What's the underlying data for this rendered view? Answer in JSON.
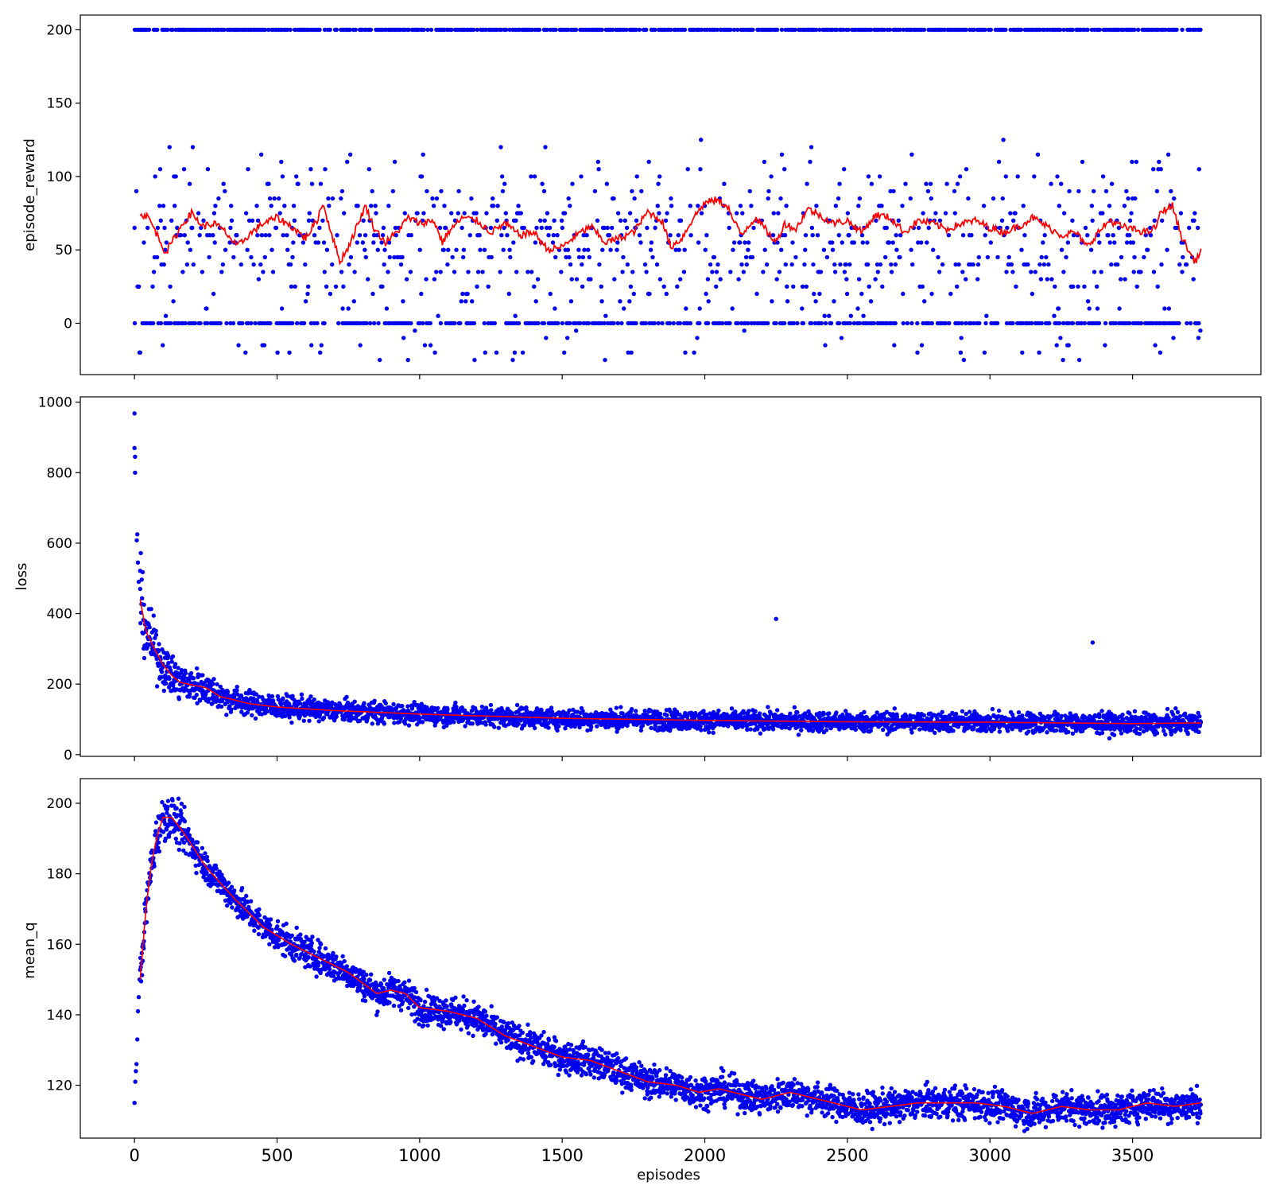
{
  "colors": {
    "scatter": "#0000ee",
    "moving_average": "#ff0000"
  },
  "chart_data": [
    {
      "type": "scatter",
      "ylabel": "episode_reward",
      "xlabel": "",
      "xlim": [
        -190,
        3950
      ],
      "ylim": [
        -35,
        210
      ],
      "x_ticks": [
        0,
        500,
        1000,
        1500,
        2000,
        2500,
        3000,
        3500
      ],
      "y_ticks": [
        0,
        50,
        100,
        150,
        200
      ],
      "x_tick_labels_visible": false,
      "points": {
        "episodes": [
          0,
          3740
        ],
        "levels": [
          200,
          0
        ],
        "range": [
          -25,
          125
        ],
        "step": 5
      },
      "moving_average_knots": [
        [
          20,
          75
        ],
        [
          50,
          72
        ],
        [
          80,
          60
        ],
        [
          110,
          48
        ],
        [
          140,
          58
        ],
        [
          170,
          68
        ],
        [
          200,
          75
        ],
        [
          240,
          66
        ],
        [
          280,
          68
        ],
        [
          320,
          62
        ],
        [
          360,
          52
        ],
        [
          400,
          60
        ],
        [
          450,
          68
        ],
        [
          500,
          72
        ],
        [
          550,
          66
        ],
        [
          600,
          58
        ],
        [
          640,
          70
        ],
        [
          660,
          82
        ],
        [
          690,
          62
        ],
        [
          720,
          42
        ],
        [
          750,
          52
        ],
        [
          780,
          66
        ],
        [
          810,
          80
        ],
        [
          840,
          65
        ],
        [
          880,
          55
        ],
        [
          920,
          62
        ],
        [
          960,
          72
        ],
        [
          1000,
          68
        ],
        [
          1050,
          70
        ],
        [
          1080,
          55
        ],
        [
          1100,
          62
        ],
        [
          1150,
          72
        ],
        [
          1200,
          70
        ],
        [
          1250,
          62
        ],
        [
          1300,
          68
        ],
        [
          1350,
          60
        ],
        [
          1400,
          62
        ],
        [
          1450,
          50
        ],
        [
          1500,
          52
        ],
        [
          1550,
          60
        ],
        [
          1600,
          66
        ],
        [
          1650,
          55
        ],
        [
          1700,
          58
        ],
        [
          1750,
          62
        ],
        [
          1800,
          76
        ],
        [
          1850,
          70
        ],
        [
          1880,
          52
        ],
        [
          1920,
          58
        ],
        [
          1960,
          72
        ],
        [
          2000,
          82
        ],
        [
          2040,
          84
        ],
        [
          2080,
          80
        ],
        [
          2100,
          70
        ],
        [
          2130,
          60
        ],
        [
          2150,
          66
        ],
        [
          2180,
          72
        ],
        [
          2220,
          62
        ],
        [
          2250,
          55
        ],
        [
          2280,
          68
        ],
        [
          2320,
          64
        ],
        [
          2360,
          78
        ],
        [
          2400,
          74
        ],
        [
          2450,
          68
        ],
        [
          2500,
          70
        ],
        [
          2550,
          62
        ],
        [
          2600,
          74
        ],
        [
          2650,
          72
        ],
        [
          2700,
          62
        ],
        [
          2750,
          70
        ],
        [
          2800,
          68
        ],
        [
          2850,
          64
        ],
        [
          2900,
          68
        ],
        [
          2950,
          70
        ],
        [
          3000,
          65
        ],
        [
          3050,
          62
        ],
        [
          3100,
          66
        ],
        [
          3150,
          72
        ],
        [
          3200,
          66
        ],
        [
          3250,
          60
        ],
        [
          3300,
          62
        ],
        [
          3340,
          52
        ],
        [
          3380,
          62
        ],
        [
          3420,
          70
        ],
        [
          3460,
          66
        ],
        [
          3500,
          64
        ],
        [
          3550,
          62
        ],
        [
          3580,
          65
        ],
        [
          3600,
          76
        ],
        [
          3640,
          80
        ],
        [
          3670,
          60
        ],
        [
          3700,
          48
        ],
        [
          3720,
          42
        ],
        [
          3740,
          50
        ]
      ]
    },
    {
      "type": "scatter",
      "ylabel": "loss",
      "xlabel": "",
      "xlim": [
        -190,
        3950
      ],
      "ylim": [
        -5,
        1015
      ],
      "x_ticks": [
        0,
        500,
        1000,
        1500,
        2000,
        2500,
        3000,
        3500
      ],
      "y_ticks": [
        0,
        200,
        400,
        600,
        800,
        1000
      ],
      "x_tick_labels_visible": false,
      "outliers": [
        [
          0,
          968
        ],
        [
          0,
          870
        ],
        [
          2,
          845
        ],
        [
          2,
          800
        ],
        [
          8,
          608
        ],
        [
          10,
          625
        ],
        [
          12,
          545
        ],
        [
          15,
          490
        ],
        [
          20,
          470
        ],
        [
          2250,
          385
        ],
        [
          3360,
          318
        ]
      ],
      "trend_knots": [
        [
          20,
          440
        ],
        [
          40,
          350
        ],
        [
          70,
          300
        ],
        [
          100,
          255
        ],
        [
          130,
          225
        ],
        [
          160,
          205
        ],
        [
          200,
          198
        ],
        [
          250,
          190
        ],
        [
          300,
          165
        ],
        [
          400,
          145
        ],
        [
          500,
          135
        ],
        [
          700,
          125
        ],
        [
          1000,
          115
        ],
        [
          1500,
          103
        ],
        [
          2000,
          97
        ],
        [
          2500,
          93
        ],
        [
          3000,
          92
        ],
        [
          3500,
          88
        ],
        [
          3740,
          90
        ]
      ],
      "noise_amplitude": 14
    },
    {
      "type": "scatter",
      "ylabel": "mean_q",
      "xlabel": "episodes",
      "xlim": [
        -190,
        3950
      ],
      "ylim": [
        105,
        207
      ],
      "x_ticks": [
        0,
        500,
        1000,
        1500,
        2000,
        2500,
        3000,
        3500
      ],
      "y_ticks": [
        120,
        140,
        160,
        180,
        200
      ],
      "x_tick_labels_visible": true,
      "outliers": [
        [
          0,
          115
        ],
        [
          3,
          121
        ],
        [
          5,
          124
        ],
        [
          7,
          126
        ],
        [
          10,
          133
        ],
        [
          12,
          141
        ],
        [
          15,
          145
        ],
        [
          18,
          150
        ]
      ],
      "trend_knots": [
        [
          20,
          150
        ],
        [
          40,
          170
        ],
        [
          60,
          183
        ],
        [
          80,
          191
        ],
        [
          100,
          196
        ],
        [
          130,
          196
        ],
        [
          170,
          192
        ],
        [
          250,
          182
        ],
        [
          350,
          173
        ],
        [
          450,
          165
        ],
        [
          550,
          160
        ],
        [
          650,
          156
        ],
        [
          750,
          152
        ],
        [
          850,
          146
        ],
        [
          900,
          147
        ],
        [
          950,
          146
        ],
        [
          1000,
          142
        ],
        [
          1100,
          141
        ],
        [
          1200,
          139
        ],
        [
          1300,
          134
        ],
        [
          1400,
          131
        ],
        [
          1500,
          128
        ],
        [
          1600,
          127
        ],
        [
          1700,
          124
        ],
        [
          1800,
          121
        ],
        [
          1900,
          120
        ],
        [
          1980,
          118
        ],
        [
          2050,
          119
        ],
        [
          2150,
          117
        ],
        [
          2200,
          116
        ],
        [
          2300,
          118
        ],
        [
          2350,
          117
        ],
        [
          2450,
          115
        ],
        [
          2550,
          113
        ],
        [
          2650,
          114
        ],
        [
          2750,
          115
        ],
        [
          2850,
          115
        ],
        [
          2950,
          115
        ],
        [
          3050,
          114
        ],
        [
          3150,
          112
        ],
        [
          3250,
          114
        ],
        [
          3350,
          113
        ],
        [
          3450,
          113
        ],
        [
          3550,
          115
        ],
        [
          3650,
          114
        ],
        [
          3740,
          115
        ]
      ],
      "noise_amplitude": 2.2
    }
  ]
}
